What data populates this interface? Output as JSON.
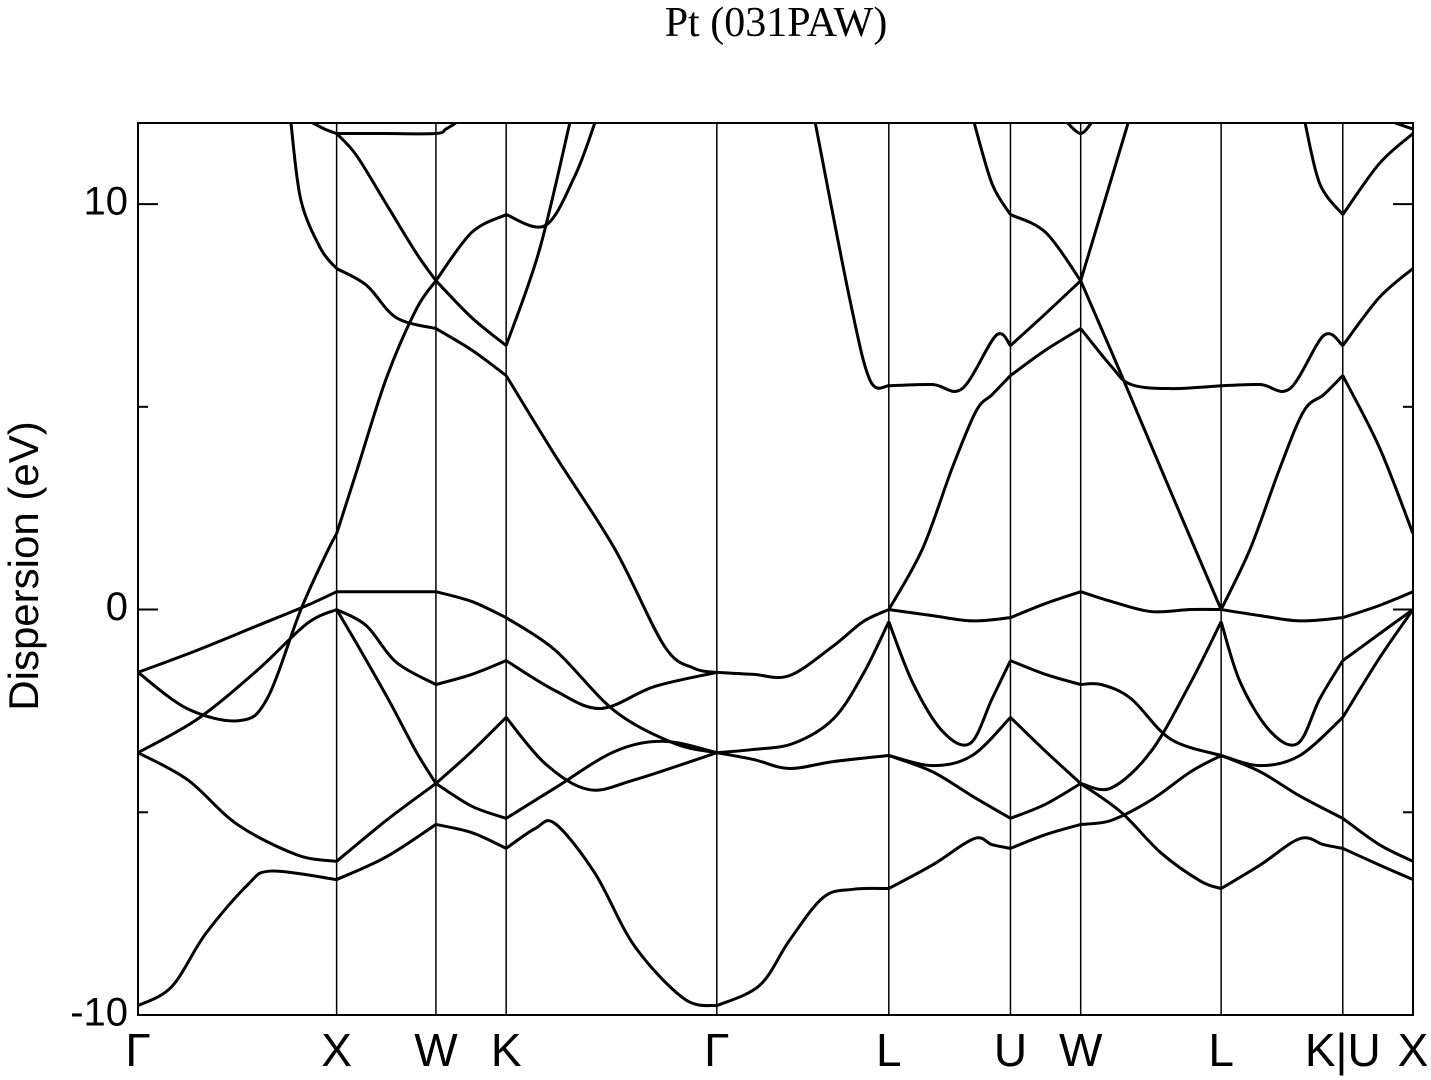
{
  "chart_data": {
    "type": "line",
    "title": "Pt (031PAW)",
    "y_label": "Dispersion (eV)",
    "color": "#000000",
    "xlim": [
      0,
      6.4193
    ],
    "ylim": [
      -10,
      12
    ],
    "yticks": [
      -10,
      0,
      10
    ],
    "yminorticks": [
      -5,
      5
    ],
    "xticks": [
      {
        "value": 0,
        "label": "Γ"
      },
      {
        "value": 1,
        "label": "X"
      },
      {
        "value": 1.5,
        "label": "W"
      },
      {
        "value": 1.8536,
        "label": "K"
      },
      {
        "value": 2.9142,
        "label": "Γ"
      },
      {
        "value": 3.7802,
        "label": "L"
      },
      {
        "value": 4.3926,
        "label": "U"
      },
      {
        "value": 4.7462,
        "label": "W"
      },
      {
        "value": 5.4533,
        "label": "L"
      },
      {
        "value": 6.0657,
        "label": "K|U"
      },
      {
        "value": 6.4193,
        "label": "X"
      }
    ],
    "series": [
      {
        "x": [
          0,
          0.17,
          0.34,
          0.55,
          0.67,
          1
        ],
        "values": [
          -9.77,
          -9.3,
          -8.0,
          -6.8,
          -6.45,
          -6.66
        ]
      },
      {
        "x": [
          0,
          0.25,
          0.5,
          0.8,
          1
        ],
        "values": [
          -3.53,
          -4.2,
          -5.3,
          -6.05,
          -6.21
        ]
      },
      {
        "x": [
          0,
          0.3,
          0.6,
          0.85,
          1
        ],
        "values": [
          -3.53,
          -2.7,
          -1.5,
          -0.35,
          0.0
        ]
      },
      {
        "x": [
          0,
          0.3,
          0.6,
          0.85,
          1
        ],
        "values": [
          -1.55,
          -1.0,
          -0.4,
          0.1,
          0.44
        ]
      },
      {
        "x": [
          0,
          0.25,
          0.51,
          0.65,
          0.82,
          0.95,
          1
        ],
        "values": [
          -1.55,
          -2.45,
          -2.74,
          -2.2,
          0.0,
          1.4,
          1.87
        ]
      },
      {
        "x": [
          0.77,
          0.82,
          0.92,
          1
        ],
        "values": [
          12.0,
          10.1,
          8.9,
          8.41
        ]
      },
      {
        "x": [
          0.88,
          0.94,
          1
        ],
        "values": [
          12.0,
          11.85,
          11.74
        ]
      },
      {
        "x": [
          1,
          1.25,
          1.5
        ],
        "values": [
          -6.66,
          -6.1,
          -5.3
        ]
      },
      {
        "x": [
          1,
          1.25,
          1.5
        ],
        "values": [
          -6.21,
          -5.2,
          -4.29
        ]
      },
      {
        "x": [
          1,
          1.12,
          1.27,
          1.4,
          1.5
        ],
        "values": [
          0.0,
          -1.0,
          -2.3,
          -3.5,
          -4.29
        ]
      },
      {
        "x": [
          1,
          1.15,
          1.3,
          1.5
        ],
        "values": [
          0.0,
          -0.4,
          -1.3,
          -1.85
        ]
      },
      {
        "x": [
          1,
          1.25,
          1.5
        ],
        "values": [
          0.44,
          0.44,
          0.44
        ]
      },
      {
        "x": [
          1,
          1.1,
          1.25,
          1.4,
          1.5
        ],
        "values": [
          1.87,
          3.4,
          5.7,
          7.4,
          8.11
        ]
      },
      {
        "x": [
          1,
          1.15,
          1.3,
          1.5
        ],
        "values": [
          8.41,
          8.0,
          7.2,
          6.93
        ]
      },
      {
        "x": [
          1,
          1.1,
          1.25,
          1.4,
          1.5
        ],
        "values": [
          11.74,
          11.2,
          10.0,
          8.8,
          8.11
        ]
      },
      {
        "x": [
          1,
          1.25,
          1.5,
          1.55,
          1.6
        ],
        "values": [
          11.74,
          11.74,
          11.74,
          11.85,
          12.0
        ]
      },
      {
        "x": [
          1.5,
          1.68,
          1.8536
        ],
        "values": [
          -5.3,
          -5.5,
          -5.89
        ]
      },
      {
        "x": [
          1.5,
          1.68,
          1.8536
        ],
        "values": [
          -4.29,
          -4.85,
          -5.15
        ]
      },
      {
        "x": [
          1.5,
          1.68,
          1.8536
        ],
        "values": [
          -4.29,
          -3.5,
          -2.66
        ]
      },
      {
        "x": [
          1.5,
          1.68,
          1.8536
        ],
        "values": [
          -1.85,
          -1.6,
          -1.26
        ]
      },
      {
        "x": [
          1.5,
          1.68,
          1.8536
        ],
        "values": [
          0.44,
          0.2,
          -0.2
        ]
      },
      {
        "x": [
          1.5,
          1.68,
          1.8536
        ],
        "values": [
          6.93,
          6.4,
          5.77
        ]
      },
      {
        "x": [
          1.5,
          1.68,
          1.8536
        ],
        "values": [
          8.11,
          7.2,
          6.51
        ]
      },
      {
        "x": [
          1.5,
          1.68,
          1.8536
        ],
        "values": [
          8.11,
          9.3,
          9.74
        ]
      },
      {
        "x": [
          1.8536,
          2.0,
          2.1,
          2.3,
          2.5,
          2.75,
          2.9142
        ],
        "values": [
          -5.89,
          -5.4,
          -5.28,
          -6.5,
          -8.3,
          -9.6,
          -9.77
        ]
      },
      {
        "x": [
          1.8536,
          2.1,
          2.4,
          2.65,
          2.9142
        ],
        "values": [
          -5.15,
          -4.4,
          -3.5,
          -3.25,
          -3.53
        ]
      },
      {
        "x": [
          1.8536,
          2.05,
          2.27,
          2.5,
          2.9142
        ],
        "values": [
          -2.66,
          -3.8,
          -4.44,
          -4.2,
          -3.53
        ]
      },
      {
        "x": [
          1.8536,
          2.1,
          2.33,
          2.6,
          2.9142
        ],
        "values": [
          -1.26,
          -2.0,
          -2.44,
          -1.9,
          -1.55
        ]
      },
      {
        "x": [
          1.8536,
          2.1,
          2.4,
          2.7,
          2.9142
        ],
        "values": [
          -0.2,
          -1.0,
          -2.5,
          -3.3,
          -3.53
        ]
      },
      {
        "x": [
          1.8536,
          2.1,
          2.4,
          2.65,
          2.8,
          2.9142
        ],
        "values": [
          5.77,
          3.8,
          1.5,
          -0.9,
          -1.45,
          -1.55
        ]
      },
      {
        "x": [
          1.8536,
          2.02,
          2.174
        ],
        "values": [
          6.51,
          8.85,
          12.0
        ]
      },
      {
        "x": [
          1.8536,
          2.05,
          2.2,
          2.3
        ],
        "values": [
          9.74,
          9.47,
          10.7,
          12.0
        ]
      },
      {
        "x": [
          2.9142,
          3.13,
          3.28,
          3.45,
          3.6,
          3.7802
        ],
        "values": [
          -9.77,
          -9.27,
          -8.16,
          -7.1,
          -6.9,
          -6.88
        ]
      },
      {
        "x": [
          2.9142,
          3.1,
          3.28,
          3.5,
          3.7802
        ],
        "values": [
          -3.53,
          -3.7,
          -3.92,
          -3.75,
          -3.6
        ]
      },
      {
        "x": [
          2.9142,
          3.1,
          3.3,
          3.5,
          3.65,
          3.7802
        ],
        "values": [
          -3.53,
          -3.45,
          -3.3,
          -2.7,
          -1.6,
          -0.3
        ]
      },
      {
        "x": [
          2.9142,
          3.1,
          3.28,
          3.5,
          3.65,
          3.7802
        ],
        "values": [
          -1.55,
          -1.6,
          -1.63,
          -0.9,
          -0.3,
          0.0
        ]
      },
      {
        "x": [
          3.41,
          3.585,
          3.686,
          3.7802
        ],
        "values": [
          12.0,
          7.62,
          5.65,
          5.52
        ]
      },
      {
        "x": [
          3.7802,
          4.0,
          4.21,
          4.3,
          4.3926
        ],
        "values": [
          -6.88,
          -6.3,
          -5.65,
          -5.8,
          -5.89
        ]
      },
      {
        "x": [
          3.7802,
          4.0,
          4.2,
          4.3926
        ],
        "values": [
          -3.6,
          -4.0,
          -4.6,
          -5.15
        ]
      },
      {
        "x": [
          3.7802,
          4.0,
          4.2,
          4.3926
        ],
        "values": [
          -3.6,
          -3.85,
          -3.6,
          -2.66
        ]
      },
      {
        "x": [
          3.7802,
          3.9,
          4.05,
          4.19,
          4.3,
          4.3926
        ],
        "values": [
          -0.3,
          -1.8,
          -3.0,
          -3.3,
          -2.2,
          -1.26
        ]
      },
      {
        "x": [
          3.7802,
          4.0,
          4.2,
          4.3926
        ],
        "values": [
          0.0,
          -0.15,
          -0.28,
          -0.2
        ]
      },
      {
        "x": [
          3.7802,
          3.95,
          4.1,
          4.22,
          4.3,
          4.3926
        ],
        "values": [
          0.0,
          1.5,
          3.5,
          4.9,
          5.3,
          5.77
        ]
      },
      {
        "x": [
          3.7802,
          4.0,
          4.15,
          4.32,
          4.3926
        ],
        "values": [
          5.52,
          5.55,
          5.45,
          6.76,
          6.51
        ]
      },
      {
        "x": [
          4.21,
          4.3,
          4.3926
        ],
        "values": [
          12.0,
          10.5,
          9.74
        ]
      },
      {
        "x": [
          4.3926,
          4.57,
          4.7462
        ],
        "values": [
          -5.89,
          -5.55,
          -5.3
        ]
      },
      {
        "x": [
          4.3926,
          4.57,
          4.7462
        ],
        "values": [
          -5.15,
          -4.8,
          -4.29
        ]
      },
      {
        "x": [
          4.3926,
          4.57,
          4.7462
        ],
        "values": [
          -2.66,
          -3.5,
          -4.29
        ]
      },
      {
        "x": [
          4.3926,
          4.57,
          4.7462
        ],
        "values": [
          -1.26,
          -1.6,
          -1.85
        ]
      },
      {
        "x": [
          4.3926,
          4.57,
          4.7462
        ],
        "values": [
          -0.2,
          0.15,
          0.44
        ]
      },
      {
        "x": [
          4.3926,
          4.57,
          4.7462
        ],
        "values": [
          5.77,
          6.4,
          6.93
        ]
      },
      {
        "x": [
          4.3926,
          4.57,
          4.7462
        ],
        "values": [
          6.51,
          7.3,
          8.11
        ]
      },
      {
        "x": [
          4.3926,
          4.57,
          4.7462
        ],
        "values": [
          9.74,
          9.3,
          8.11
        ]
      },
      {
        "x": [
          4.68,
          4.7462,
          4.8
        ],
        "values": [
          12.0,
          11.74,
          12.0
        ]
      },
      {
        "x": [
          4.7462,
          4.95,
          5.15,
          5.35,
          5.4533
        ],
        "values": [
          -4.29,
          -5.0,
          -6.0,
          -6.7,
          -6.88
        ]
      },
      {
        "x": [
          4.7462,
          4.9,
          5.1,
          5.3,
          5.4533
        ],
        "values": [
          -5.3,
          -5.2,
          -4.7,
          -4.0,
          -3.6
        ]
      },
      {
        "x": [
          4.7462,
          4.9,
          5.1,
          5.3,
          5.4533
        ],
        "values": [
          -4.29,
          -4.4,
          -3.5,
          -1.8,
          -0.3
        ]
      },
      {
        "x": [
          4.7462,
          4.85,
          5.0,
          5.2,
          5.4533
        ],
        "values": [
          -1.85,
          -1.85,
          -2.2,
          -3.2,
          -3.6
        ]
      },
      {
        "x": [
          4.7462,
          4.9,
          5.1,
          5.3,
          5.4533
        ],
        "values": [
          0.44,
          0.2,
          -0.05,
          0.0,
          0.0
        ]
      },
      {
        "x": [
          4.7462,
          4.9,
          5.0,
          5.2,
          5.4533
        ],
        "values": [
          6.93,
          6.0,
          5.55,
          5.45,
          5.52
        ]
      },
      {
        "x": [
          4.7462,
          4.95,
          5.2,
          5.4533
        ],
        "values": [
          8.11,
          5.8,
          2.9,
          0.0
        ]
      },
      {
        "x": [
          4.7462,
          4.85,
          4.985
        ],
        "values": [
          8.11,
          9.8,
          12.0
        ]
      },
      {
        "x": [
          5.4533,
          5.65,
          5.85,
          5.97,
          6.0657
        ],
        "values": [
          -6.88,
          -6.3,
          -5.65,
          -5.8,
          -5.89
        ]
      },
      {
        "x": [
          5.4533,
          5.65,
          5.85,
          6.0657
        ],
        "values": [
          -3.6,
          -4.0,
          -4.6,
          -5.15
        ]
      },
      {
        "x": [
          5.4533,
          5.65,
          5.85,
          6.0657
        ],
        "values": [
          -3.6,
          -3.85,
          -3.6,
          -2.66
        ]
      },
      {
        "x": [
          5.4533,
          5.55,
          5.7,
          5.84,
          5.95,
          6.0657
        ],
        "values": [
          -0.3,
          -1.8,
          -3.0,
          -3.3,
          -2.2,
          -1.26
        ]
      },
      {
        "x": [
          5.4533,
          5.65,
          5.85,
          6.0657
        ],
        "values": [
          0.0,
          -0.15,
          -0.28,
          -0.2
        ]
      },
      {
        "x": [
          5.4533,
          5.6,
          5.75,
          5.87,
          5.97,
          6.0657
        ],
        "values": [
          0.0,
          1.5,
          3.5,
          4.9,
          5.3,
          5.77
        ]
      },
      {
        "x": [
          5.4533,
          5.65,
          5.8,
          5.97,
          6.0657
        ],
        "values": [
          5.52,
          5.55,
          5.45,
          6.76,
          6.51
        ]
      },
      {
        "x": [
          5.876,
          5.95,
          6.0657
        ],
        "values": [
          12.0,
          10.5,
          9.74
        ]
      },
      {
        "x": [
          6.0657,
          6.25,
          6.4193
        ],
        "values": [
          -5.89,
          -6.3,
          -6.66
        ]
      },
      {
        "x": [
          6.0657,
          6.25,
          6.4193
        ],
        "values": [
          -5.15,
          -5.8,
          -6.21
        ]
      },
      {
        "x": [
          6.0657,
          6.25,
          6.4193
        ],
        "values": [
          -2.66,
          -1.2,
          0.0
        ]
      },
      {
        "x": [
          6.0657,
          6.25,
          6.4193
        ],
        "values": [
          -1.26,
          -0.6,
          0.0
        ]
      },
      {
        "x": [
          6.0657,
          6.25,
          6.4193
        ],
        "values": [
          -0.2,
          0.1,
          0.44
        ]
      },
      {
        "x": [
          6.0657,
          6.25,
          6.4193
        ],
        "values": [
          5.77,
          4.0,
          1.87
        ]
      },
      {
        "x": [
          6.0657,
          6.25,
          6.4193
        ],
        "values": [
          6.51,
          7.7,
          8.41
        ]
      },
      {
        "x": [
          6.0657,
          6.25,
          6.4193
        ],
        "values": [
          9.74,
          11.0,
          11.74
        ]
      },
      {
        "x": [
          6.33,
          6.4193
        ],
        "values": [
          12.0,
          11.85
        ]
      }
    ]
  }
}
